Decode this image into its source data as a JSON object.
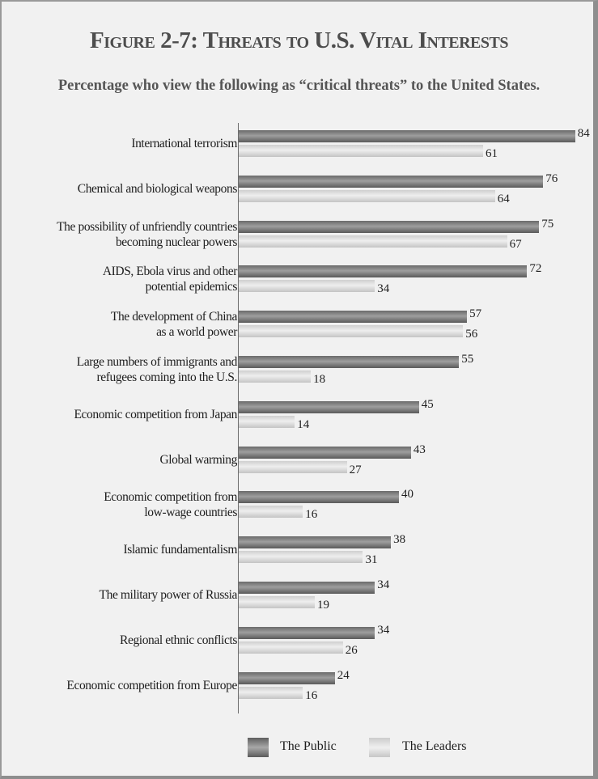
{
  "title": "Figure 2-7: Threats to U.S. Vital Interests",
  "subtitle": "Percentage who view the following as “critical threats” to the United States.",
  "legend": {
    "public": "The Public",
    "leaders": "The Leaders"
  },
  "colors": {
    "public": "#7a7a7a",
    "leaders": "#e0e0e0",
    "background": "#f1f1f1"
  },
  "chart_data": {
    "type": "bar",
    "orientation": "horizontal",
    "title": "Figure 2-7: Threats to U.S. Vital Interests",
    "subtitle": "Percentage who view the following as “critical threats” to the United States.",
    "categories": [
      [
        "International terrorism"
      ],
      [
        "Chemical and biological weapons"
      ],
      [
        "The possibility of unfriendly countries",
        "becoming nuclear powers"
      ],
      [
        "AIDS, Ebola virus and other",
        "potential epidemics"
      ],
      [
        "The development of China",
        "as a world power"
      ],
      [
        "Large numbers of immigrants and",
        "refugees coming into the U.S."
      ],
      [
        "Economic competition from Japan"
      ],
      [
        "Global warming"
      ],
      [
        "Economic competition from",
        "low-wage countries"
      ],
      [
        "Islamic fundamentalism"
      ],
      [
        "The military power of Russia"
      ],
      [
        "Regional ethnic conflicts"
      ],
      [
        "Economic competition from Europe"
      ]
    ],
    "series": [
      {
        "name": "The Public",
        "values": [
          84,
          76,
          75,
          72,
          57,
          55,
          45,
          43,
          40,
          38,
          34,
          34,
          24
        ]
      },
      {
        "name": "The Leaders",
        "values": [
          61,
          64,
          67,
          34,
          56,
          18,
          14,
          27,
          16,
          31,
          19,
          26,
          16
        ]
      }
    ],
    "xlim": [
      0,
      84
    ],
    "grid": false,
    "legend_position": "bottom"
  }
}
